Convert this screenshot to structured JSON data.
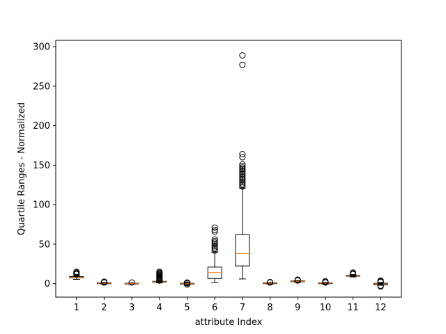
{
  "chart_data": {
    "type": "box",
    "xlabel": "attribute Index",
    "ylabel": "Quartile Ranges - Normalized",
    "ylim": [
      -17,
      308
    ],
    "yticks": [
      0,
      50,
      100,
      150,
      200,
      250,
      300
    ],
    "categories": [
      "1",
      "2",
      "3",
      "4",
      "5",
      "6",
      "7",
      "8",
      "9",
      "10",
      "11",
      "12"
    ],
    "boxes": [
      {
        "q1": 7.5,
        "median": 8.0,
        "q3": 9.0,
        "whislo": 5.5,
        "whishi": 11.0,
        "fliers": [
          12.0,
          13.0,
          14.0,
          15.0
        ]
      },
      {
        "q1": 0.0,
        "median": 0.5,
        "q3": 1.0,
        "whislo": -0.5,
        "whishi": 1.5,
        "fliers": [
          1.5,
          2.0,
          2.5
        ]
      },
      {
        "q1": 0.0,
        "median": 0.3,
        "q3": 0.6,
        "whislo": -0.5,
        "whishi": 1.0,
        "fliers": [
          1.5
        ]
      },
      {
        "q1": 2.0,
        "median": 2.5,
        "q3": 3.0,
        "whislo": 1.0,
        "whishi": 4.5,
        "fliers": [
          4.0,
          5.0,
          6.0,
          7.0,
          8.0,
          9.0,
          10.0,
          11.0,
          12.0,
          13.0,
          14.0,
          15.0
        ]
      },
      {
        "q1": -0.5,
        "median": 0.0,
        "q3": 0.5,
        "whislo": -1.5,
        "whishi": 1.5,
        "fliers": [
          -1.0,
          0.5,
          1.0,
          1.5
        ]
      },
      {
        "q1": 6.5,
        "median": 14.0,
        "q3": 21.0,
        "whislo": 1.5,
        "whishi": 40.0,
        "fliers": [
          42.0,
          44.0,
          46.0,
          48.0,
          50.0,
          52.0,
          54.0,
          56.0,
          66.0,
          68.0,
          71.0
        ]
      },
      {
        "q1": 22.5,
        "median": 38.0,
        "q3": 62.0,
        "whislo": 6.0,
        "whishi": 121.0,
        "fliers": [
          123.0,
          125.0,
          127.0,
          129.0,
          131.0,
          133.0,
          135.0,
          137.0,
          139.0,
          141.0,
          143.0,
          145.0,
          147.0,
          149.0,
          151.0,
          160.0,
          164.0,
          277.0,
          289.0
        ]
      },
      {
        "q1": 0.0,
        "median": 0.5,
        "q3": 1.0,
        "whislo": -0.5,
        "whishi": 1.5,
        "fliers": [
          1.5,
          2.0
        ]
      },
      {
        "q1": 2.5,
        "median": 3.0,
        "q3": 3.5,
        "whislo": 2.0,
        "whishi": 4.0,
        "fliers": [
          4.0,
          4.5,
          5.0
        ]
      },
      {
        "q1": 0.0,
        "median": 0.5,
        "q3": 1.0,
        "whislo": -0.5,
        "whishi": 1.5,
        "fliers": [
          1.5,
          2.0,
          3.0
        ]
      },
      {
        "q1": 9.5,
        "median": 10.0,
        "q3": 10.5,
        "whislo": 8.5,
        "whishi": 11.5,
        "fliers": [
          12.0,
          13.0,
          14.0
        ]
      },
      {
        "q1": -1.5,
        "median": -0.5,
        "q3": 0.5,
        "whislo": -2.0,
        "whishi": 1.5,
        "fliers": [
          -3.5,
          -2.5,
          2.0,
          3.0,
          4.0
        ]
      }
    ],
    "grid": false,
    "colors": {
      "box": "#000000",
      "median": "#ff7f0e",
      "background": "#ffffff"
    }
  }
}
